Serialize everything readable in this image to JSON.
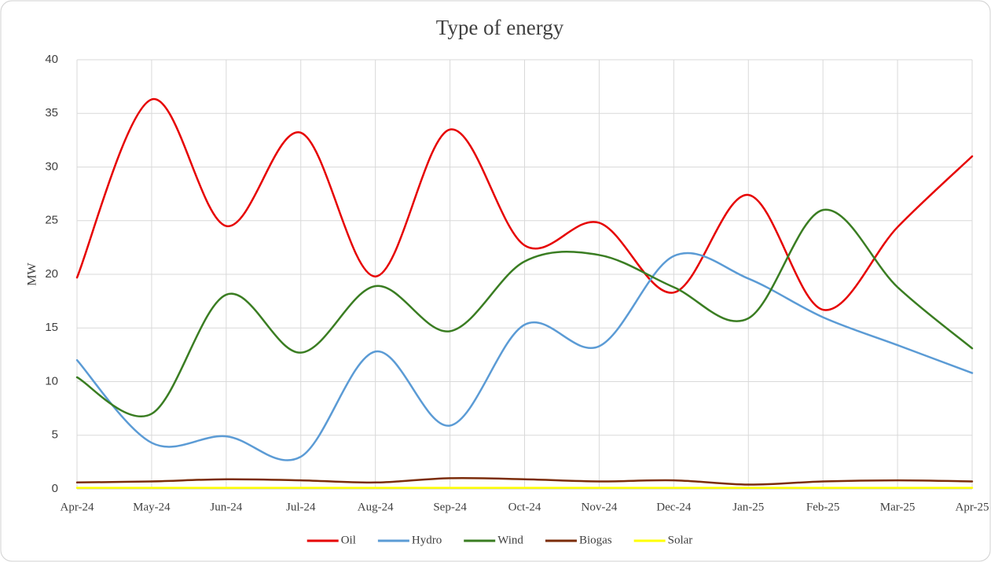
{
  "chart_data": {
    "type": "line",
    "title": "Type of energy",
    "y_label": "MW",
    "categories": [
      "Apr-24",
      "May-24",
      "Jun-24",
      "Jul-24",
      "Aug-24",
      "Sep-24",
      "Oct-24",
      "Nov-24",
      "Dec-24",
      "Jan-25",
      "Feb-25",
      "Mar-25",
      "Apr-25"
    ],
    "series": [
      {
        "name": "Oil",
        "color": "#e60000",
        "values": [
          19.7,
          36.3,
          24.5,
          33.2,
          19.8,
          33.5,
          22.7,
          24.8,
          18.3,
          27.4,
          16.7,
          24.4,
          31.0
        ]
      },
      {
        "name": "Hydro",
        "color": "#5b9bd5",
        "values": [
          12.0,
          4.3,
          4.9,
          3.0,
          12.8,
          5.9,
          15.3,
          13.3,
          21.7,
          19.6,
          16.0,
          13.4,
          10.8
        ]
      },
      {
        "name": "Wind",
        "color": "#3a7d22",
        "values": [
          10.4,
          7.0,
          18.1,
          12.7,
          18.9,
          14.7,
          21.2,
          21.8,
          18.8,
          15.9,
          26.0,
          18.8,
          13.1
        ]
      },
      {
        "name": "Biogas",
        "color": "#7b2c0a",
        "values": [
          0.6,
          0.7,
          0.9,
          0.8,
          0.6,
          1.0,
          0.9,
          0.7,
          0.8,
          0.4,
          0.7,
          0.8,
          0.7
        ]
      },
      {
        "name": "Solar",
        "color": "#ffff00",
        "values": [
          0.1,
          0.1,
          0.1,
          0.1,
          0.1,
          0.1,
          0.1,
          0.1,
          0.1,
          0.1,
          0.1,
          0.1,
          0.1
        ]
      }
    ],
    "ylim": [
      0,
      40
    ],
    "yticks": [
      0,
      5,
      10,
      15,
      20,
      25,
      30,
      35,
      40
    ],
    "grid": true,
    "smooth": true,
    "legend": "bottom"
  }
}
